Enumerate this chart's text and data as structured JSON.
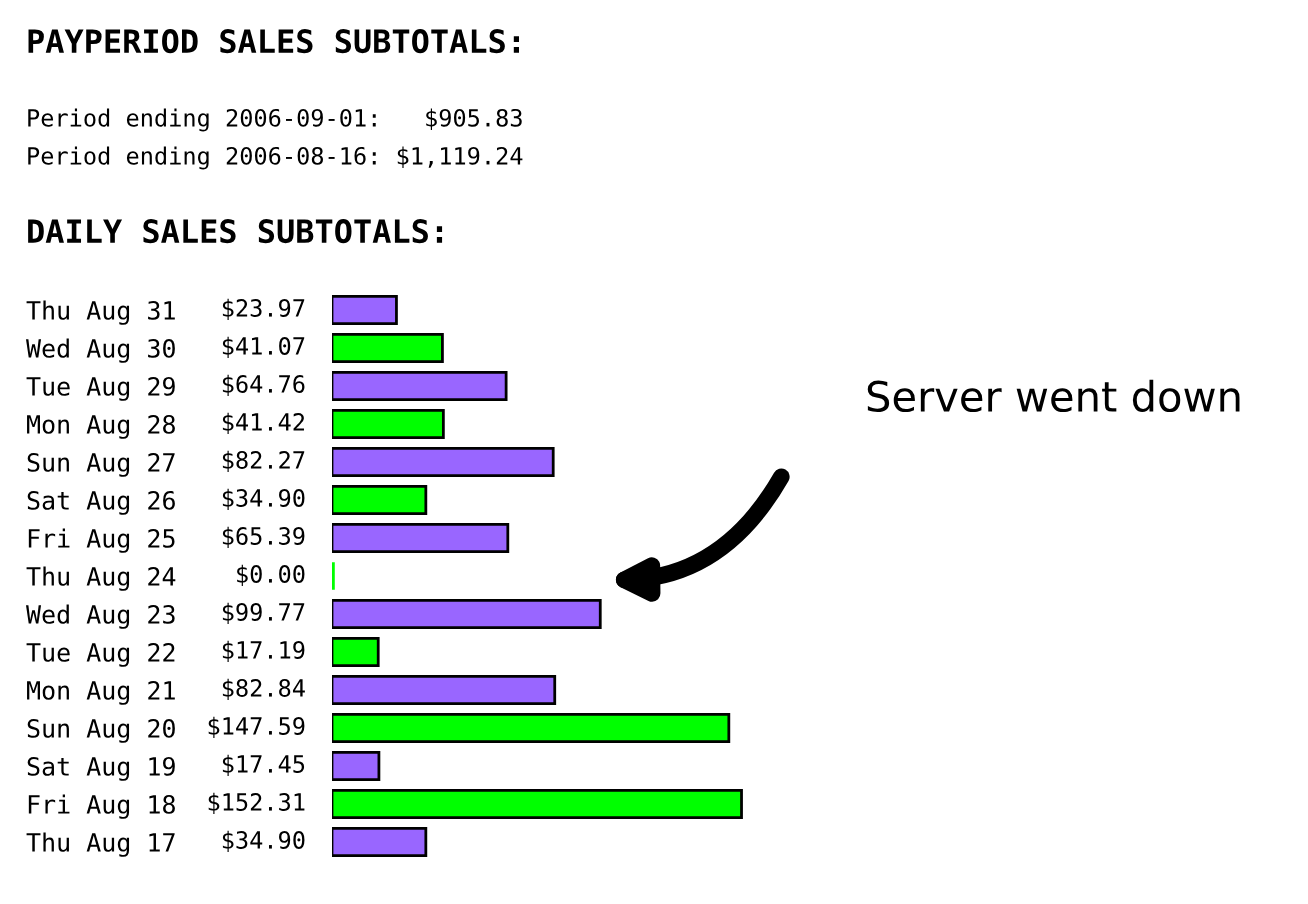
{
  "chart_data": {
    "type": "bar",
    "orientation": "horizontal",
    "title": "PAYPERIOD SALES SUBTOTALS:",
    "annotations": [
      "Period ending 2006-09-01:   $905.83",
      "Period ending 2006-08-16: $1,119.24",
      "DAILY SALES SUBTOTALS:",
      "Server went down"
    ],
    "categories": [
      "Thu Aug 31",
      "Wed Aug 30",
      "Tue Aug 29",
      "Mon Aug 28",
      "Sun Aug 27",
      "Sat Aug 26",
      "Fri Aug 25",
      "Thu Aug 24",
      "Wed Aug 23",
      "Tue Aug 22",
      "Mon Aug 21",
      "Sun Aug 20",
      "Sat Aug 19",
      "Fri Aug 18",
      "Thu Aug 17"
    ],
    "values": [
      23.97,
      41.07,
      64.76,
      41.42,
      82.27,
      34.9,
      65.39,
      0.0,
      99.77,
      17.19,
      82.84,
      147.59,
      17.45,
      152.31,
      34.9
    ],
    "value_labels": [
      "$23.97",
      "$41.07",
      "$64.76",
      "$41.42",
      "$82.27",
      "$34.90",
      "$65.39",
      "$0.00",
      "$99.77",
      "$17.19",
      "$82.84",
      "$147.59",
      "$17.45",
      "$152.31",
      "$34.90"
    ],
    "colors": [
      "#9966ff",
      "#00ff00",
      "#9966ff",
      "#00ff00",
      "#9966ff",
      "#00ff00",
      "#9966ff",
      "#00ff00",
      "#9966ff",
      "#00ff00",
      "#9966ff",
      "#00ff00",
      "#9966ff",
      "#00ff00",
      "#9966ff"
    ]
  }
}
